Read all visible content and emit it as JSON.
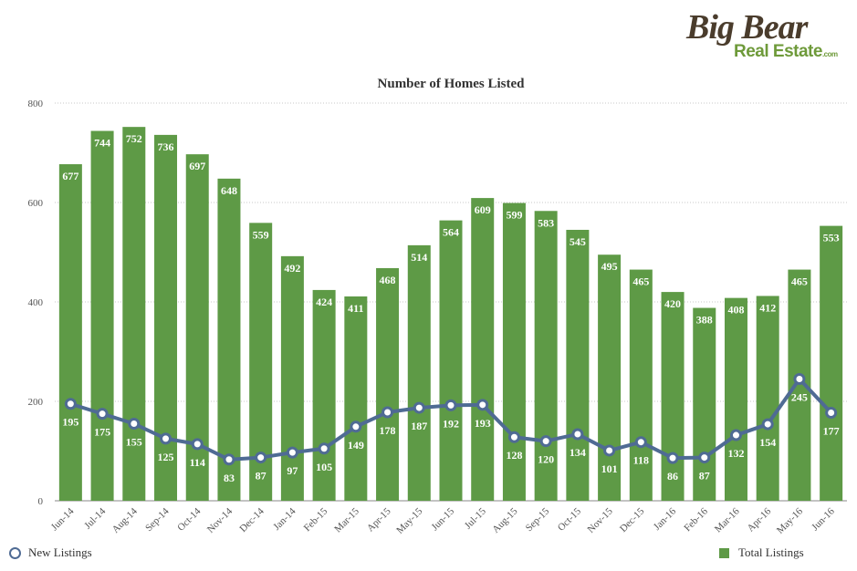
{
  "logo": {
    "line1": "Big Bear",
    "line2": "Real Estate",
    "suffix": ".com"
  },
  "chart_data": {
    "type": "bar",
    "title": "Number of Homes Listed",
    "xlabel": "",
    "ylabel": "",
    "ylim": [
      0,
      800
    ],
    "yticks": [
      0,
      200,
      400,
      600,
      800
    ],
    "grid": true,
    "legend": "bottom",
    "categories": [
      "Jun-14",
      "Jul-14",
      "Aug-14",
      "Sep-14",
      "Oct-14",
      "Nov-14",
      "Dec-14",
      "Jan-14",
      "Feb-15",
      "Mar-15",
      "Apr-15",
      "May-15",
      "Jun-15",
      "Jul-15",
      "Aug-15",
      "Sep-15",
      "Oct-15",
      "Nov-15",
      "Dec-15",
      "Jan-16",
      "Feb-16",
      "Mar-16",
      "Apr-16",
      "May-16",
      "Jun-16"
    ],
    "series": [
      {
        "name": "Total Listings",
        "type": "bar",
        "color": "#5e9a46",
        "values": [
          677,
          744,
          752,
          736,
          697,
          648,
          559,
          492,
          424,
          411,
          468,
          514,
          564,
          609,
          599,
          583,
          545,
          495,
          465,
          420,
          388,
          408,
          412,
          465,
          553
        ]
      },
      {
        "name": "New Listings",
        "type": "line",
        "color": "#4f6b94",
        "values": [
          195,
          175,
          155,
          125,
          114,
          83,
          87,
          97,
          105,
          149,
          178,
          187,
          192,
          193,
          128,
          120,
          134,
          101,
          118,
          86,
          87,
          132,
          154,
          245,
          177
        ]
      }
    ]
  }
}
